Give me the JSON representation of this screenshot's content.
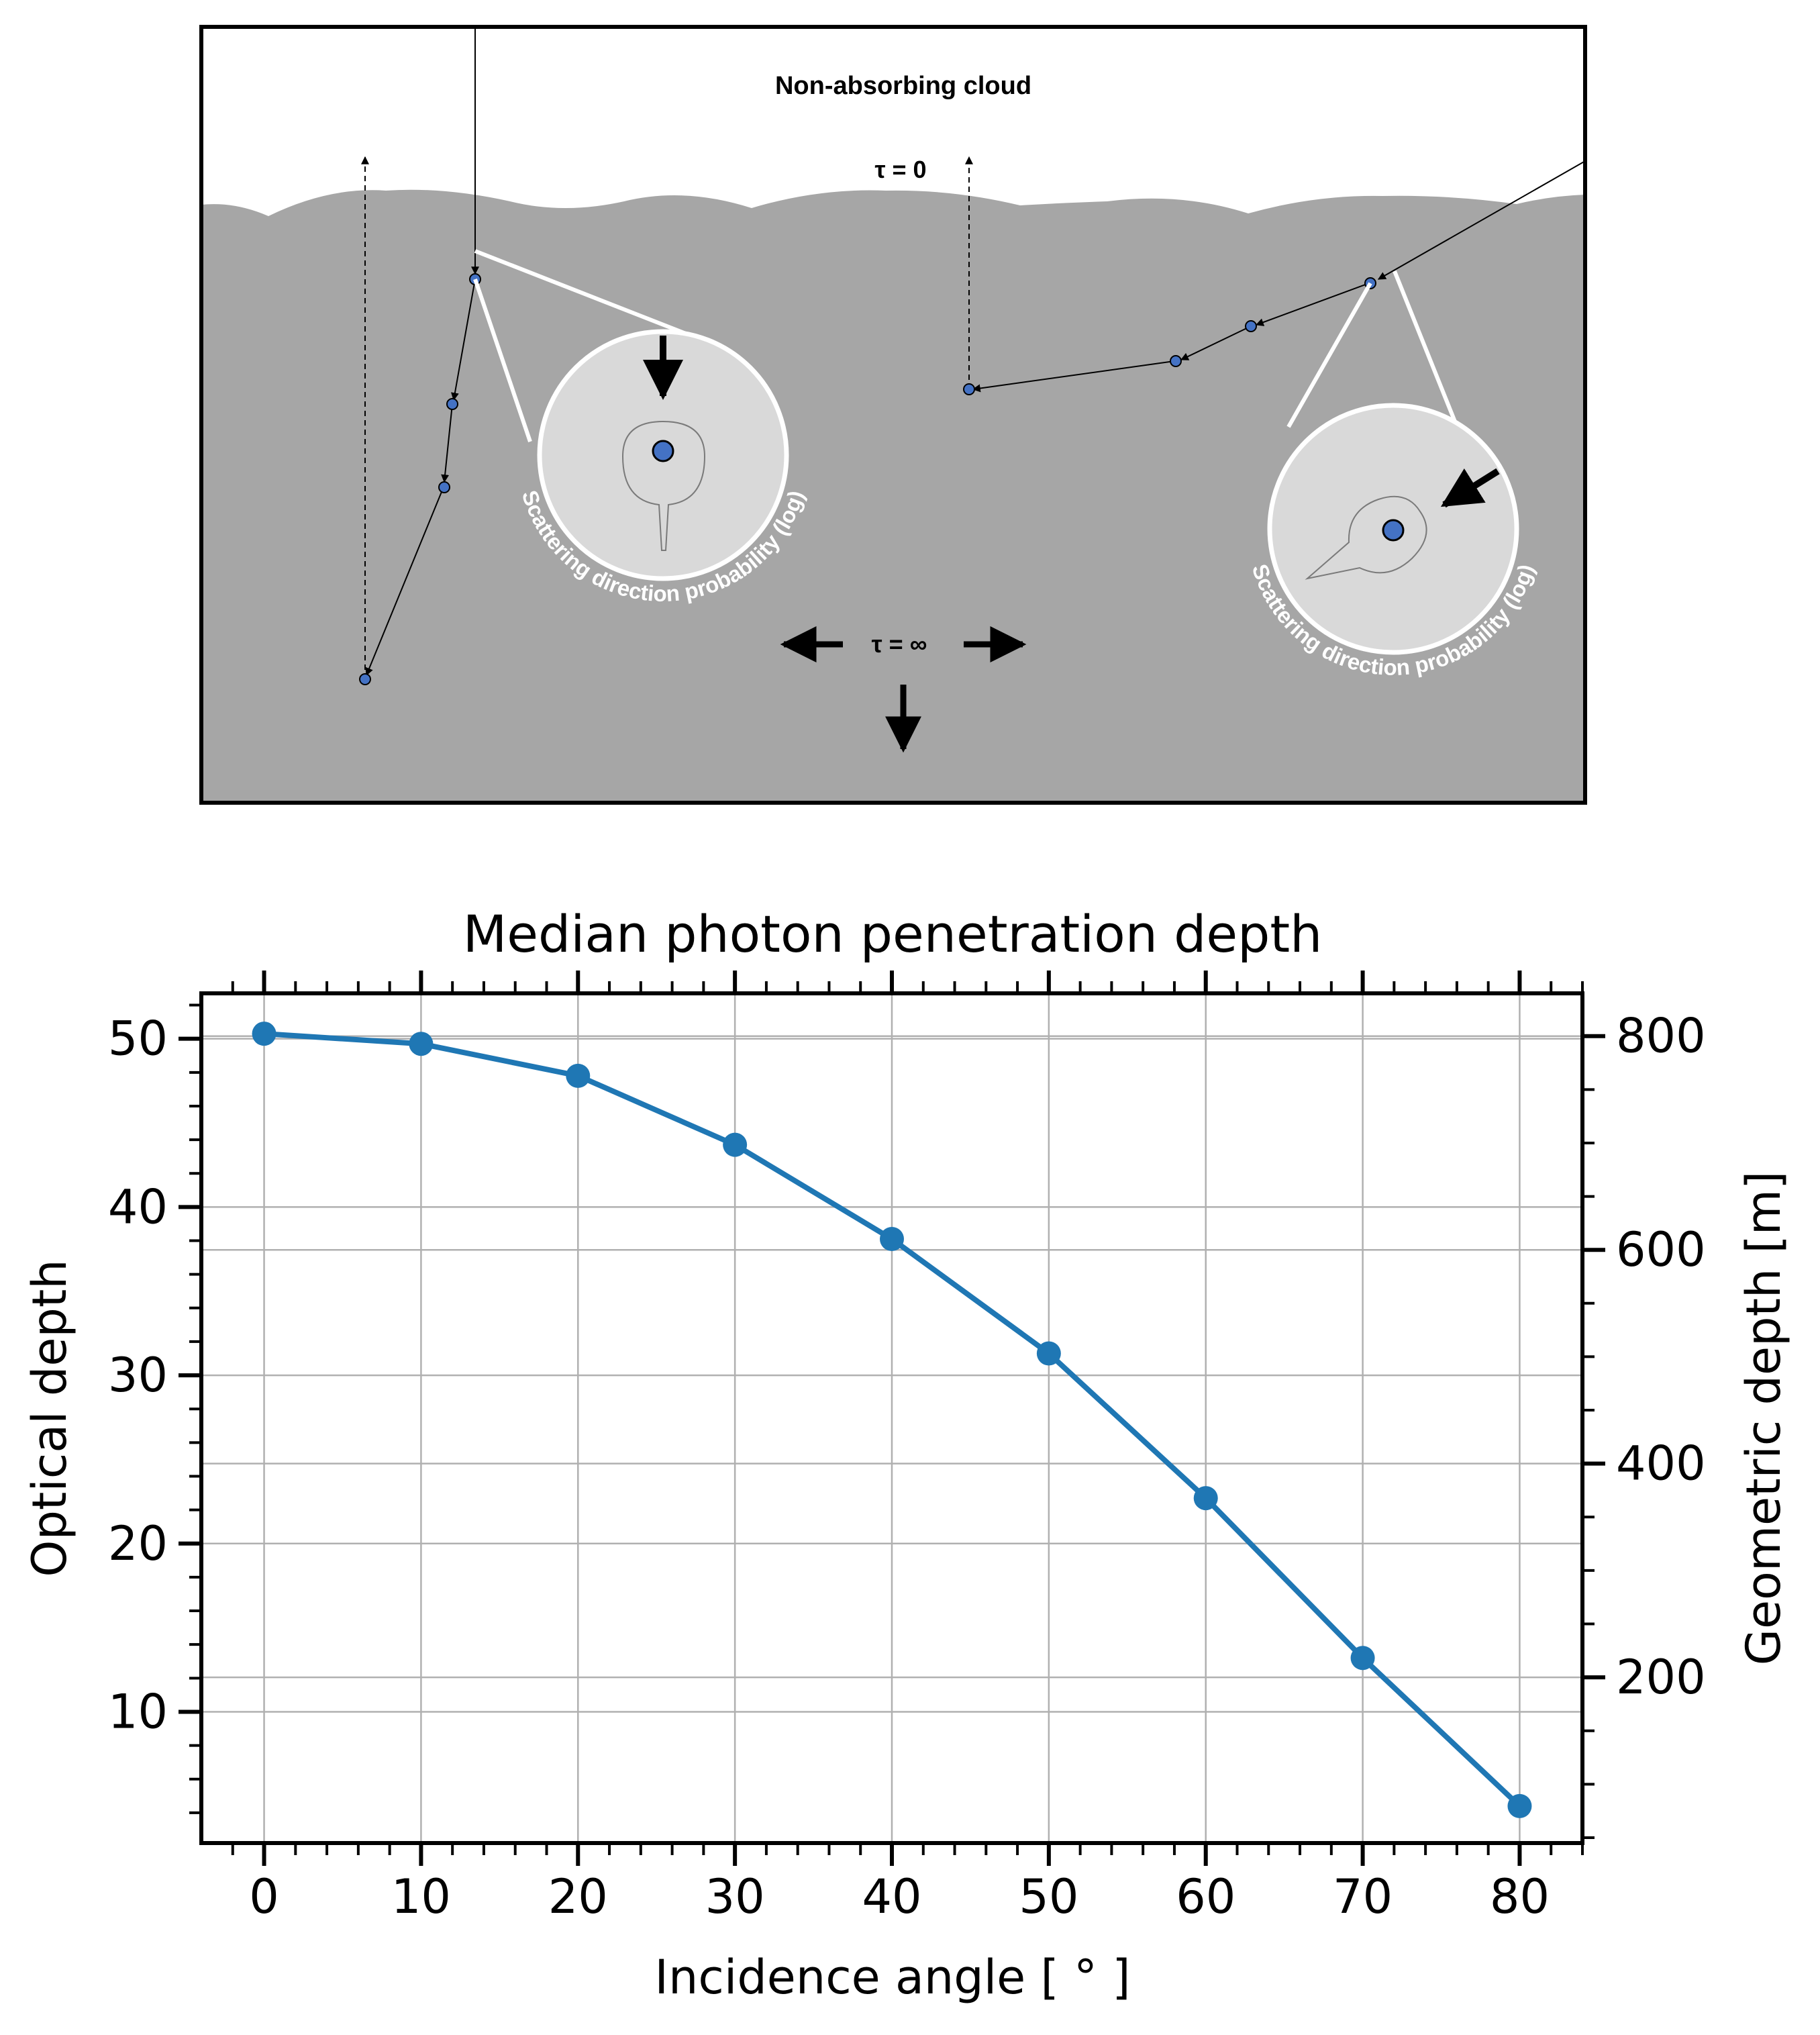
{
  "diagram": {
    "title": "Non-absorbing cloud",
    "top_label": "τ = 0",
    "bottom_label": "τ = ∞",
    "phase_label": "Scattering direction probability (log)",
    "colors": {
      "cloud": "#a6a6a6",
      "zoom_fill": "#d9d9d9",
      "node": "#4472c4"
    }
  },
  "chart_data": {
    "type": "line",
    "title": "Median photon penetration depth",
    "xlabel": "Incidence angle [ ° ]",
    "ylabel": "Optical depth",
    "y2label": "Geometric depth [m]",
    "x": [
      0,
      10,
      20,
      30,
      40,
      50,
      60,
      70,
      80
    ],
    "series": [
      {
        "values": [
          50.3,
          49.7,
          47.8,
          43.7,
          38.1,
          31.3,
          22.7,
          13.2,
          4.4
        ],
        "color": "#1f77b4"
      }
    ],
    "xlim": [
      -4,
      84
    ],
    "ylim": [
      2.2,
      52.7
    ],
    "y2lim": [
      45,
      840
    ],
    "xticks": [
      0,
      10,
      20,
      30,
      40,
      50,
      60,
      70,
      80
    ],
    "yticks": [
      10,
      20,
      30,
      40,
      50
    ],
    "y2ticks": [
      200,
      400,
      600,
      800
    ],
    "grid": true
  }
}
